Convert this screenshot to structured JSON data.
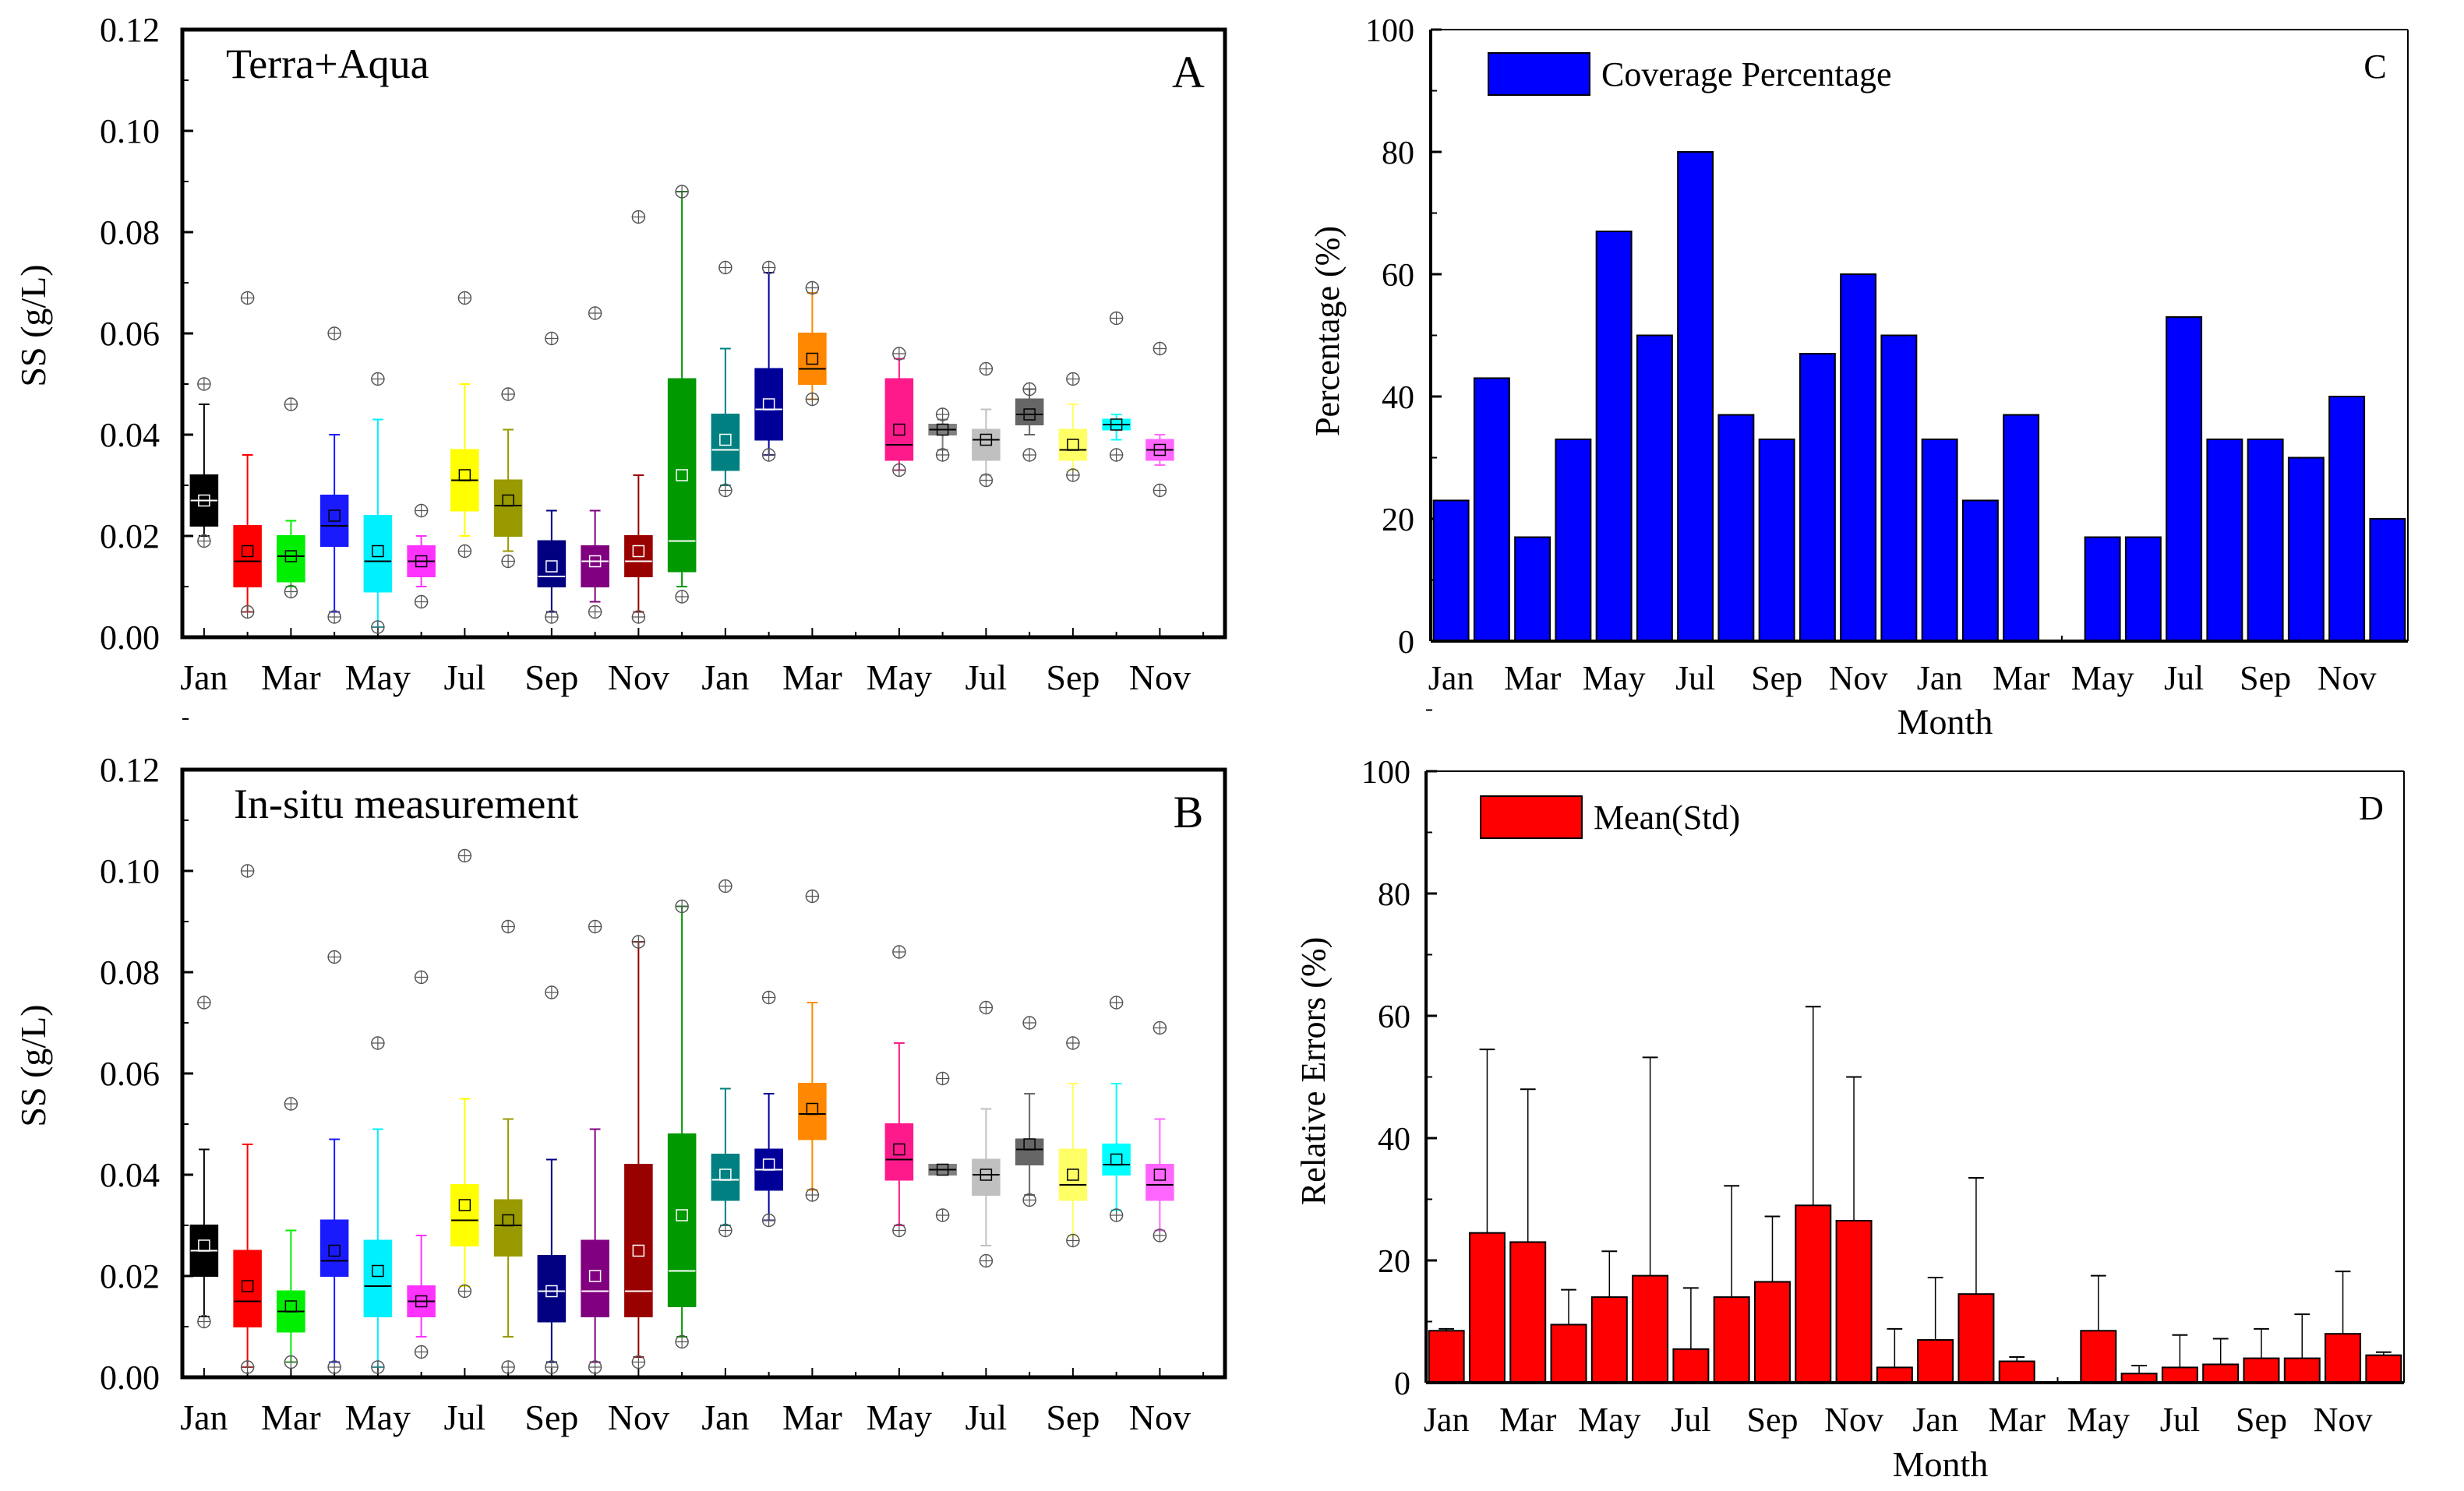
{
  "chart_data": [
    {
      "id": "A",
      "type": "boxplot",
      "panel_letter": "A",
      "title": "Terra+Aqua",
      "xlabel": "",
      "ylabel": "SS (g/L)",
      "ylim": [
        0,
        0.12
      ],
      "yticks": [
        "0.00",
        "0.02",
        "0.04",
        "0.06",
        "0.08",
        "0.10",
        "0.12"
      ],
      "xtick_labels": [
        "Jan",
        "Mar",
        "May",
        "Jul",
        "Sep",
        "Nov",
        "Jan",
        "Mar",
        "May",
        "Jul",
        "Sep",
        "Nov"
      ],
      "boxes": [
        {
          "month": "Jan",
          "color": "#000000",
          "min": 0.02,
          "q1": 0.022,
          "median": 0.027,
          "mean": 0.027,
          "q3": 0.032,
          "max": 0.046,
          "outliers": [
            0.05,
            0.019
          ]
        },
        {
          "month": "Feb",
          "color": "#ff0000",
          "min": 0.005,
          "q1": 0.01,
          "median": 0.015,
          "mean": 0.017,
          "q3": 0.022,
          "max": 0.036,
          "outliers": [
            0.067,
            0.005
          ]
        },
        {
          "month": "Mar",
          "color": "#00ee00",
          "min": 0.01,
          "q1": 0.011,
          "median": 0.016,
          "mean": 0.016,
          "q3": 0.02,
          "max": 0.023,
          "outliers": [
            0.046,
            0.009
          ]
        },
        {
          "month": "Apr",
          "color": "#1a1aff",
          "min": 0.005,
          "q1": 0.018,
          "median": 0.022,
          "mean": 0.024,
          "q3": 0.028,
          "max": 0.04,
          "outliers": [
            0.06,
            0.004
          ]
        },
        {
          "month": "May",
          "color": "#00f0ff",
          "min": 0.002,
          "q1": 0.009,
          "median": 0.015,
          "mean": 0.017,
          "q3": 0.024,
          "max": 0.043,
          "outliers": [
            0.051,
            0.002
          ]
        },
        {
          "month": "Jun",
          "color": "#ff33ff",
          "min": 0.01,
          "q1": 0.012,
          "median": 0.015,
          "mean": 0.015,
          "q3": 0.018,
          "max": 0.02,
          "outliers": [
            0.025,
            0.007
          ]
        },
        {
          "month": "Jul",
          "color": "#ffff00",
          "min": 0.02,
          "q1": 0.025,
          "median": 0.031,
          "mean": 0.032,
          "q3": 0.037,
          "max": 0.05,
          "outliers": [
            0.067,
            0.017
          ]
        },
        {
          "month": "Aug",
          "color": "#999900",
          "min": 0.017,
          "q1": 0.02,
          "median": 0.026,
          "mean": 0.027,
          "q3": 0.031,
          "max": 0.041,
          "outliers": [
            0.048,
            0.015
          ]
        },
        {
          "month": "Sep",
          "color": "#000080",
          "min": 0.005,
          "q1": 0.01,
          "median": 0.012,
          "mean": 0.014,
          "q3": 0.019,
          "max": 0.025,
          "outliers": [
            0.059,
            0.004
          ]
        },
        {
          "month": "Oct",
          "color": "#800080",
          "min": 0.007,
          "q1": 0.01,
          "median": 0.015,
          "mean": 0.015,
          "q3": 0.018,
          "max": 0.025,
          "outliers": [
            0.064,
            0.005
          ]
        },
        {
          "month": "Nov",
          "color": "#990000",
          "min": 0.005,
          "q1": 0.012,
          "median": 0.015,
          "mean": 0.017,
          "q3": 0.02,
          "max": 0.032,
          "outliers": [
            0.083,
            0.004
          ]
        },
        {
          "month": "Dec",
          "color": "#009900",
          "min": 0.01,
          "q1": 0.013,
          "median": 0.019,
          "mean": 0.032,
          "q3": 0.051,
          "max": 0.088,
          "outliers": [
            0.088,
            0.008
          ]
        },
        {
          "month": "Jan",
          "color": "#008080",
          "min": 0.03,
          "q1": 0.033,
          "median": 0.037,
          "mean": 0.039,
          "q3": 0.044,
          "max": 0.057,
          "outliers": [
            0.073,
            0.029
          ]
        },
        {
          "month": "Feb",
          "color": "#000099",
          "min": 0.036,
          "q1": 0.039,
          "median": 0.045,
          "mean": 0.046,
          "q3": 0.053,
          "max": 0.072,
          "outliers": [
            0.073,
            0.036
          ]
        },
        {
          "month": "Mar",
          "color": "#ff8800",
          "min": 0.047,
          "q1": 0.05,
          "median": 0.053,
          "mean": 0.055,
          "q3": 0.06,
          "max": 0.068,
          "outliers": [
            0.069,
            0.047
          ]
        },
        {
          "month": "Apr",
          "color": null,
          "min": null,
          "q1": null,
          "median": null,
          "mean": null,
          "q3": null,
          "max": null,
          "outliers": []
        },
        {
          "month": "May",
          "color": "#ff1a8c",
          "min": 0.033,
          "q1": 0.035,
          "median": 0.038,
          "mean": 0.041,
          "q3": 0.051,
          "max": 0.055,
          "outliers": [
            0.056,
            0.033
          ]
        },
        {
          "month": "Jun",
          "color": "#808080",
          "min": 0.037,
          "q1": 0.04,
          "median": 0.041,
          "mean": 0.041,
          "q3": 0.042,
          "max": 0.043,
          "outliers": [
            0.044,
            0.036
          ]
        },
        {
          "month": "Jul",
          "color": "#c0c0c0",
          "min": 0.032,
          "q1": 0.035,
          "median": 0.039,
          "mean": 0.039,
          "q3": 0.041,
          "max": 0.045,
          "outliers": [
            0.053,
            0.031
          ]
        },
        {
          "month": "Aug",
          "color": "#666666",
          "min": 0.04,
          "q1": 0.042,
          "median": 0.044,
          "mean": 0.044,
          "q3": 0.047,
          "max": 0.049,
          "outliers": [
            0.049,
            0.036
          ]
        },
        {
          "month": "Sep",
          "color": "#ffff66",
          "min": 0.033,
          "q1": 0.035,
          "median": 0.037,
          "mean": 0.038,
          "q3": 0.041,
          "max": 0.046,
          "outliers": [
            0.051,
            0.032
          ]
        },
        {
          "month": "Oct",
          "color": "#00ffff",
          "min": 0.039,
          "q1": 0.041,
          "median": 0.042,
          "mean": 0.042,
          "q3": 0.043,
          "max": 0.044,
          "outliers": [
            0.063,
            0.036
          ]
        },
        {
          "month": "Nov",
          "color": "#ff66ff",
          "min": 0.034,
          "q1": 0.035,
          "median": 0.037,
          "mean": 0.037,
          "q3": 0.039,
          "max": 0.04,
          "outliers": [
            0.057,
            0.029
          ]
        }
      ]
    },
    {
      "id": "B",
      "type": "boxplot",
      "panel_letter": "B",
      "title": "In-situ measurement",
      "xlabel": "",
      "ylabel": "SS (g/L)",
      "ylim": [
        0,
        0.12
      ],
      "yticks": [
        "0.00",
        "0.02",
        "0.04",
        "0.06",
        "0.08",
        "0.10",
        "0.12"
      ],
      "xtick_labels": [
        "Jan",
        "Mar",
        "May",
        "Jul",
        "Sep",
        "Nov",
        "Jan",
        "Mar",
        "May",
        "Jul",
        "Sep",
        "Nov"
      ],
      "boxes": [
        {
          "month": "Jan",
          "color": "#000000",
          "min": 0.012,
          "q1": 0.02,
          "median": 0.025,
          "mean": 0.026,
          "q3": 0.03,
          "max": 0.045,
          "outliers": [
            0.074,
            0.011
          ]
        },
        {
          "month": "Feb",
          "color": "#ff0000",
          "min": 0.002,
          "q1": 0.01,
          "median": 0.015,
          "mean": 0.018,
          "q3": 0.025,
          "max": 0.046,
          "outliers": [
            0.1,
            0.002
          ]
        },
        {
          "month": "Mar",
          "color": "#00ee00",
          "min": 0.003,
          "q1": 0.009,
          "median": 0.013,
          "mean": 0.014,
          "q3": 0.017,
          "max": 0.029,
          "outliers": [
            0.054,
            0.003
          ]
        },
        {
          "month": "Apr",
          "color": "#1a1aff",
          "min": 0.003,
          "q1": 0.02,
          "median": 0.023,
          "mean": 0.025,
          "q3": 0.031,
          "max": 0.047,
          "outliers": [
            0.083,
            0.002
          ]
        },
        {
          "month": "May",
          "color": "#00f0ff",
          "min": 0.002,
          "q1": 0.012,
          "median": 0.018,
          "mean": 0.021,
          "q3": 0.027,
          "max": 0.049,
          "outliers": [
            0.066,
            0.002
          ]
        },
        {
          "month": "Jun",
          "color": "#ff33ff",
          "min": 0.008,
          "q1": 0.012,
          "median": 0.015,
          "mean": 0.015,
          "q3": 0.018,
          "max": 0.028,
          "outliers": [
            0.079,
            0.005
          ]
        },
        {
          "month": "Jul",
          "color": "#ffff00",
          "min": 0.018,
          "q1": 0.026,
          "median": 0.031,
          "mean": 0.034,
          "q3": 0.038,
          "max": 0.055,
          "outliers": [
            0.103,
            0.017
          ]
        },
        {
          "month": "Aug",
          "color": "#999900",
          "min": 0.008,
          "q1": 0.024,
          "median": 0.03,
          "mean": 0.031,
          "q3": 0.035,
          "max": 0.051,
          "outliers": [
            0.089,
            0.002
          ]
        },
        {
          "month": "Sep",
          "color": "#000080",
          "min": 0.003,
          "q1": 0.011,
          "median": 0.017,
          "mean": 0.017,
          "q3": 0.024,
          "max": 0.043,
          "outliers": [
            0.076,
            0.002
          ]
        },
        {
          "month": "Oct",
          "color": "#800080",
          "min": 0.003,
          "q1": 0.012,
          "median": 0.017,
          "mean": 0.02,
          "q3": 0.027,
          "max": 0.049,
          "outliers": [
            0.089,
            0.002
          ]
        },
        {
          "month": "Nov",
          "color": "#990000",
          "min": 0.004,
          "q1": 0.012,
          "median": 0.017,
          "mean": 0.025,
          "q3": 0.042,
          "max": 0.086,
          "outliers": [
            0.086,
            0.003
          ]
        },
        {
          "month": "Dec",
          "color": "#009900",
          "min": 0.008,
          "q1": 0.014,
          "median": 0.021,
          "mean": 0.032,
          "q3": 0.048,
          "max": 0.093,
          "outliers": [
            0.093,
            0.007
          ]
        },
        {
          "month": "Jan",
          "color": "#008080",
          "min": 0.03,
          "q1": 0.035,
          "median": 0.039,
          "mean": 0.04,
          "q3": 0.044,
          "max": 0.057,
          "outliers": [
            0.097,
            0.029
          ]
        },
        {
          "month": "Feb",
          "color": "#000099",
          "min": 0.031,
          "q1": 0.037,
          "median": 0.041,
          "mean": 0.042,
          "q3": 0.045,
          "max": 0.056,
          "outliers": [
            0.075,
            0.031
          ]
        },
        {
          "month": "Mar",
          "color": "#ff8800",
          "min": 0.037,
          "q1": 0.047,
          "median": 0.052,
          "mean": 0.053,
          "q3": 0.058,
          "max": 0.074,
          "outliers": [
            0.095,
            0.036
          ]
        },
        {
          "month": "Apr",
          "color": null,
          "min": null,
          "q1": null,
          "median": null,
          "mean": null,
          "q3": null,
          "max": null,
          "outliers": []
        },
        {
          "month": "May",
          "color": "#ff1a8c",
          "min": 0.03,
          "q1": 0.039,
          "median": 0.043,
          "mean": 0.045,
          "q3": 0.05,
          "max": 0.066,
          "outliers": [
            0.084,
            0.029
          ]
        },
        {
          "month": "Jun",
          "color": "#808080",
          "min": 0.04,
          "q1": 0.04,
          "median": 0.041,
          "mean": 0.041,
          "q3": 0.042,
          "max": 0.042,
          "outliers": [
            0.059,
            0.032
          ]
        },
        {
          "month": "Jul",
          "color": "#c0c0c0",
          "min": 0.026,
          "q1": 0.036,
          "median": 0.04,
          "mean": 0.04,
          "q3": 0.043,
          "max": 0.053,
          "outliers": [
            0.073,
            0.023
          ]
        },
        {
          "month": "Aug",
          "color": "#666666",
          "min": 0.036,
          "q1": 0.042,
          "median": 0.045,
          "mean": 0.046,
          "q3": 0.047,
          "max": 0.056,
          "outliers": [
            0.07,
            0.035
          ]
        },
        {
          "month": "Sep",
          "color": "#ffff66",
          "min": 0.028,
          "q1": 0.035,
          "median": 0.038,
          "mean": 0.04,
          "q3": 0.045,
          "max": 0.058,
          "outliers": [
            0.066,
            0.027
          ]
        },
        {
          "month": "Oct",
          "color": "#00ffff",
          "min": 0.033,
          "q1": 0.04,
          "median": 0.042,
          "mean": 0.043,
          "q3": 0.046,
          "max": 0.058,
          "outliers": [
            0.074,
            0.032
          ]
        },
        {
          "month": "Nov",
          "color": "#ff66ff",
          "min": 0.029,
          "q1": 0.035,
          "median": 0.038,
          "mean": 0.04,
          "q3": 0.042,
          "max": 0.051,
          "outliers": [
            0.069,
            0.028
          ]
        }
      ]
    },
    {
      "id": "C",
      "type": "bar",
      "panel_letter": "C",
      "title": "",
      "xlabel": "Month",
      "ylabel": "Percentage (%)",
      "ylim": [
        0,
        100
      ],
      "yticks": [
        "0",
        "20",
        "40",
        "60",
        "80",
        "100"
      ],
      "xtick_labels": [
        "Jan",
        "Mar",
        "May",
        "Jul",
        "Sep",
        "Nov",
        "Jan",
        "Mar",
        "May",
        "Jul",
        "Sep",
        "Nov"
      ],
      "legend": "Coverage Percentage",
      "legend_position": "top-left",
      "bar_color": "#0000ff",
      "categories": [
        "Jan",
        "Feb",
        "Mar",
        "Apr",
        "May",
        "Jun",
        "Jul",
        "Aug",
        "Sep",
        "Oct",
        "Nov",
        "Dec",
        "Jan",
        "Feb",
        "Mar",
        "Apr",
        "May",
        "Jun",
        "Jul",
        "Aug",
        "Sep",
        "Oct",
        "Nov",
        "Dec"
      ],
      "values": [
        23,
        43,
        17,
        33,
        67,
        50,
        80,
        37,
        33,
        47,
        60,
        50,
        33,
        23,
        37,
        0,
        17,
        17,
        53,
        33,
        33,
        30,
        40,
        20
      ]
    },
    {
      "id": "D",
      "type": "bar",
      "panel_letter": "D",
      "title": "",
      "xlabel": "Month",
      "ylabel": "Relative Errors (%)",
      "ylim": [
        0,
        100
      ],
      "yticks": [
        "0",
        "20",
        "40",
        "60",
        "80",
        "100"
      ],
      "xtick_labels": [
        "Jan",
        "Mar",
        "May",
        "Jul",
        "Sep",
        "Nov",
        "Jan",
        "Mar",
        "May",
        "Jul",
        "Sep",
        "Nov"
      ],
      "legend": "Mean(Std)",
      "legend_position": "top-left",
      "bar_color": "#ff0000",
      "categories": [
        "Jan",
        "Feb",
        "Mar",
        "Apr",
        "May",
        "Jun",
        "Jul",
        "Aug",
        "Sep",
        "Oct",
        "Nov",
        "Dec",
        "Jan",
        "Feb",
        "Mar",
        "Apr",
        "May",
        "Jun",
        "Jul",
        "Aug",
        "Sep",
        "Oct",
        "Nov",
        "Dec"
      ],
      "values": [
        8.5,
        24.5,
        23,
        9.5,
        14,
        17.5,
        5.5,
        14,
        16.5,
        29,
        26.5,
        2.5,
        7,
        14.5,
        3.5,
        0,
        8.5,
        1.5,
        2.5,
        3,
        4,
        4,
        8,
        4.5
      ],
      "errors": [
        8.8,
        54.5,
        48,
        15.2,
        21.5,
        53.2,
        15.5,
        32.2,
        27.2,
        61.5,
        50,
        8.8,
        17.2,
        33.5,
        4.2,
        0,
        17.5,
        2.8,
        7.8,
        7.2,
        8.8,
        11.2,
        18.2,
        5
      ]
    }
  ]
}
